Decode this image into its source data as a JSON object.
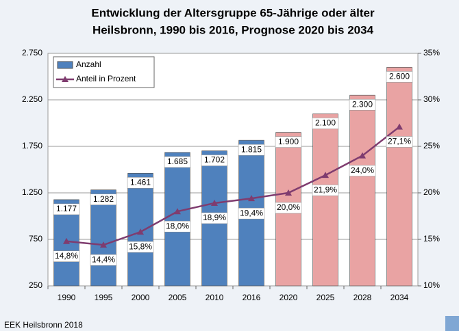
{
  "chart_data": {
    "type": "bar_line",
    "title": "Entwicklung der Altersgruppe 65-Jährige oder älter",
    "subtitle": "Heilsbronn, 1990 bis 2016, Prognose 2020 bis 2034",
    "footer": "EEK Heilsbronn 2018",
    "categories": [
      "1990",
      "1995",
      "2000",
      "2005",
      "2010",
      "2016",
      "2020",
      "2025",
      "2028",
      "2034"
    ],
    "series": [
      {
        "name": "Anzahl",
        "type": "bar",
        "color": "#4f81bd",
        "colors": [
          "#4f81bd",
          "#4f81bd",
          "#4f81bd",
          "#4f81bd",
          "#4f81bd",
          "#4f81bd",
          "#e9a3a3",
          "#e9a3a3",
          "#e9a3a3",
          "#e9a3a3"
        ],
        "values": [
          1177,
          1282,
          1461,
          1685,
          1702,
          1815,
          1900,
          2100,
          2300,
          2600
        ],
        "value_labels": [
          "1.177",
          "1.282",
          "1.461",
          "1.685",
          "1.702",
          "1.815",
          "1.900",
          "2.100",
          "2.300",
          "2.600"
        ]
      },
      {
        "name": "Anteil in Prozent",
        "type": "line",
        "axis": "y2",
        "color": "#7f3c6f",
        "values": [
          14.8,
          14.4,
          15.8,
          18.0,
          18.9,
          19.4,
          20.0,
          21.9,
          24.0,
          27.1
        ],
        "value_labels": [
          "14,8%",
          "14,4%",
          "15,8%",
          "18,0%",
          "18,9%",
          "19,4%",
          "20,0%",
          "21,9%",
          "24,0%",
          "27,1%"
        ]
      }
    ],
    "ylim": [
      250,
      2750
    ],
    "yticks": [
      250,
      750,
      {
        "value": 1250,
        "label": "1.250"
      },
      {
        "value": 1750,
        "label": "1.750"
      },
      {
        "value": 2250,
        "label": "2.250"
      },
      {
        "value": 2750,
        "label": "2.750"
      }
    ],
    "y2lim": [
      10,
      35
    ],
    "y2ticks": [
      {
        "value": 10,
        "label": "10%"
      },
      {
        "value": 15,
        "label": "15%"
      },
      {
        "value": 20,
        "label": "20%"
      },
      {
        "value": 25,
        "label": "25%"
      },
      {
        "value": 30,
        "label": "30%"
      },
      {
        "value": 35,
        "label": "35%"
      }
    ],
    "grid": true,
    "legend": "top-left"
  }
}
